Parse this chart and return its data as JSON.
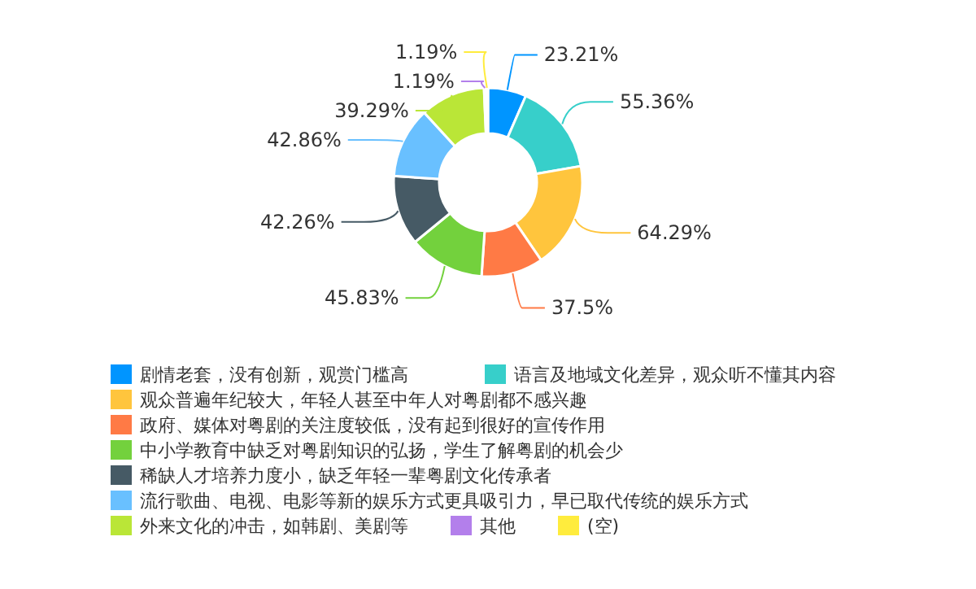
{
  "chart_data": {
    "type": "donut",
    "legend": "bottom",
    "categories": [
      "剧情老套，没有创新，观赏门槛高",
      "语言及地域文化差异，观众听不懂其内容",
      "观众普遍年纪较大，年轻人甚至中年人对粤剧都不感兴趣",
      "政府、媒体对粤剧的关注度较低，没有起到很好的宣传作用",
      "中小学教育中缺乏对粤剧知识的弘扬，学生了解粤剧的机会少",
      "稀缺人才培养力度小，缺乏年轻一辈粤剧文化传承者",
      "流行歌曲、电视、电影等新的娱乐方式更具吸引力，早已取代传统的娱乐方式",
      "外来文化的冲击，如韩剧、美剧等",
      "其他",
      "(空)"
    ],
    "values": [
      23.21,
      55.36,
      64.29,
      37.5,
      45.83,
      42.26,
      42.86,
      39.29,
      1.19,
      1.19
    ],
    "value_labels": [
      "23.21%",
      "55.36%",
      "64.29%",
      "37.5%",
      "45.83%",
      "42.26%",
      "42.86%",
      "39.29%",
      "1.19%",
      "1.19%"
    ],
    "colors": [
      "#0095ff",
      "#37cfca",
      "#ffc53d",
      "#ff7a45",
      "#73d13d",
      "#465a65",
      "#69c0ff",
      "#bae637",
      "#b37feb",
      "#ffec3d"
    ]
  }
}
